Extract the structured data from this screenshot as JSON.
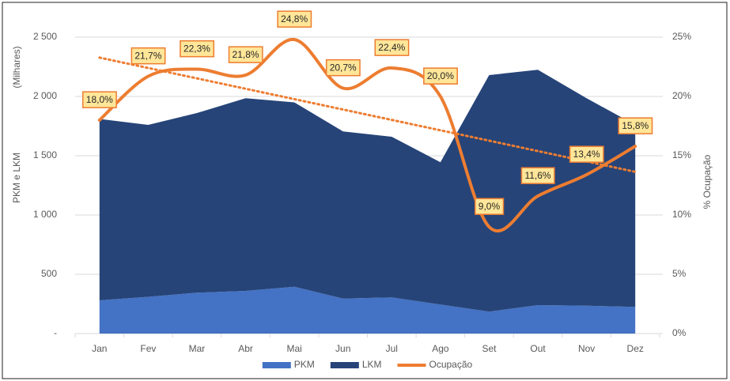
{
  "chart_data": {
    "type": "area-line",
    "stacked": true,
    "axis_labels": {
      "y": "PKM e LKM",
      "y_unit": "(Milhares)",
      "y2": "% Ocupação"
    },
    "categories": [
      "Jan",
      "Fev",
      "Mar",
      "Abr",
      "Mai",
      "Jun",
      "Jul",
      "Ago",
      "Set",
      "Out",
      "Nov",
      "Dez"
    ],
    "series": [
      {
        "name": "PKM",
        "color": "#4472c4",
        "values": [
          280,
          310,
          345,
          360,
          395,
          295,
          305,
          245,
          185,
          240,
          235,
          225
        ]
      },
      {
        "name": "LKM",
        "color": "#264478",
        "values": [
          1530,
          1450,
          1515,
          1625,
          1555,
          1410,
          1355,
          1200,
          1995,
          1985,
          1750,
          1535
        ]
      },
      {
        "name": "Ocupação",
        "color": "#ed7d31",
        "axis": "y2",
        "smooth": true,
        "trendline": true,
        "values": [
          18.0,
          21.7,
          22.3,
          21.8,
          24.8,
          20.7,
          22.4,
          20.0,
          9.0,
          11.6,
          13.4,
          15.8
        ],
        "value_labels": [
          "18,0%",
          "21,7%",
          "22,3%",
          "21,8%",
          "24,8%",
          "20,7%",
          "22,4%",
          "20,0%",
          "9,0%",
          "11,6%",
          "13,4%",
          "15,8%"
        ]
      }
    ],
    "ylim": [
      0,
      2500
    ],
    "yticks": [
      {
        "value": 0,
        "label": "-"
      },
      500,
      {
        "value": 1000,
        "label": "1 000"
      },
      {
        "value": 1500,
        "label": "1 500"
      },
      {
        "value": 2000,
        "label": "2 000"
      },
      {
        "value": 2500,
        "label": "2 500"
      }
    ],
    "y2lim": [
      0,
      25
    ],
    "y2ticks": [
      {
        "value": 0,
        "label": "0%"
      },
      {
        "value": 5,
        "label": "5%"
      },
      {
        "value": 10,
        "label": "10%"
      },
      {
        "value": 15,
        "label": "15%"
      },
      {
        "value": 20,
        "label": "20%"
      },
      {
        "value": 25,
        "label": "25%"
      }
    ],
    "grid": true,
    "legend": "bottom"
  }
}
